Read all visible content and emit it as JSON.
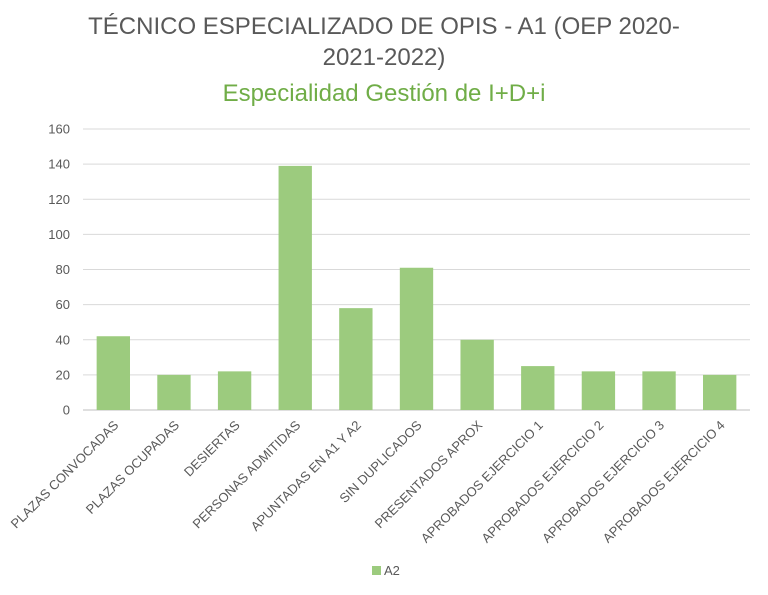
{
  "chart_data": {
    "type": "bar",
    "title_line1": "TÉCNICO  ESPECIALIZADO DE OPIS - A1 (OEP 2020-",
    "title_line2": "2021-2022)",
    "subtitle": "Especialidad Gestión de I+D+i",
    "categories": [
      "PLAZAS CONVOCADAS",
      "PLAZAS OCUPADAS",
      "DESIERTAS",
      "PERSONAS ADMITIDAS",
      "APUNTADAS EN A1 Y A2",
      "SIN DUPLICADOS",
      "PRESENTADOS APROX",
      "APROBADOS EJERCICIO 1",
      "APROBADOS EJERCICIO 2",
      "APROBADOS EJERCICIO 3",
      "APROBADOS EJERCICIO 4"
    ],
    "series": [
      {
        "name": "A2",
        "values": [
          42,
          20,
          22,
          139,
          58,
          81,
          40,
          25,
          22,
          22,
          20
        ]
      }
    ],
    "ylim": [
      0,
      160
    ],
    "yticks": [
      0,
      20,
      40,
      60,
      80,
      100,
      120,
      140,
      160
    ],
    "grid": true,
    "legend_position": "bottom",
    "colors": {
      "bar": "#9ccb7e",
      "grid": "#d9d9d9",
      "axis": "#bfbfbf",
      "title": "#595959",
      "subtitle": "#70ad47"
    }
  }
}
